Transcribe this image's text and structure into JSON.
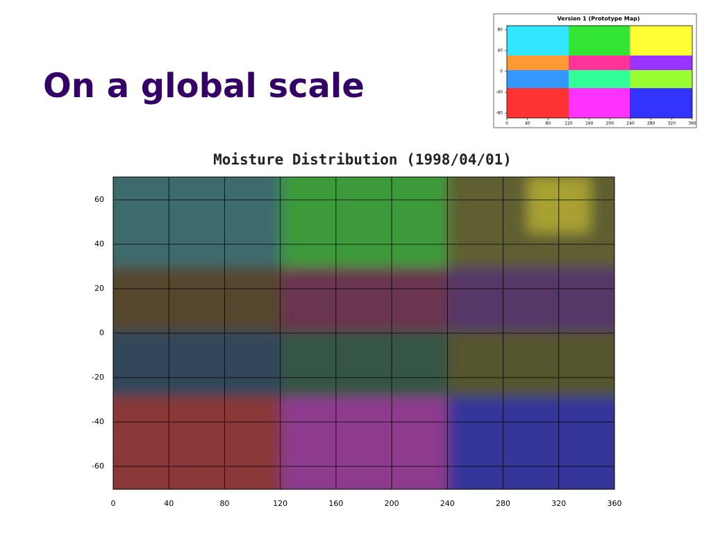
{
  "slide": {
    "title": "On a global scale",
    "inset": {
      "title": "Version 1 (Prototype Map)",
      "yticks": [
        80,
        40,
        0,
        -40,
        -80
      ],
      "xticks": [
        0,
        40,
        80,
        120,
        160,
        200,
        240,
        280,
        320,
        360
      ]
    },
    "map": {
      "title": "Moisture Distribution (1998/04/01)",
      "yticks": [
        60,
        40,
        20,
        0,
        -20,
        -40,
        -60
      ],
      "xticks": [
        0,
        40,
        80,
        120,
        160,
        200,
        240,
        280,
        320,
        360
      ]
    }
  }
}
